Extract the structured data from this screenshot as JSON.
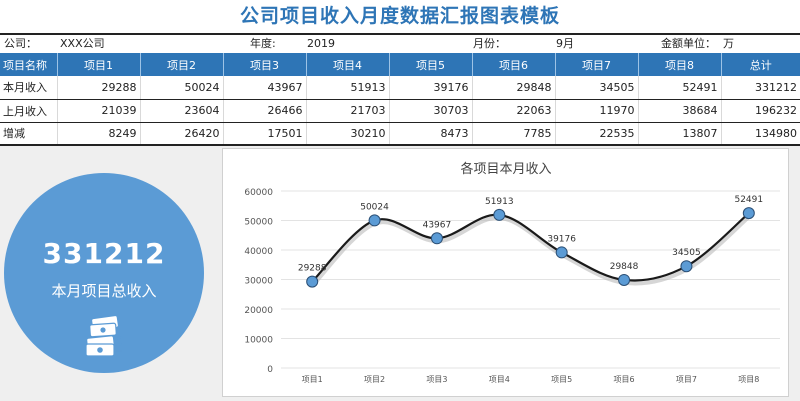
{
  "title": "公司项目收入月度数据汇报图表模板",
  "info": {
    "company_label": "公司：",
    "company_value": "XXX公司",
    "year_label": "年度:",
    "year_value": "2019",
    "month_label": "月份：",
    "month_value": "9月",
    "unit_label": "金额单位：",
    "unit_value": "万"
  },
  "table": {
    "headers": [
      "项目名称",
      "项目1",
      "项目2",
      "项目3",
      "项目4",
      "项目5",
      "项目6",
      "项目7",
      "项目8",
      "总计"
    ],
    "rows": [
      {
        "label": "本月收入",
        "values": [
          "29288",
          "50024",
          "43967",
          "51913",
          "39176",
          "29848",
          "34505",
          "52491",
          "331212"
        ]
      },
      {
        "label": "上月收入",
        "values": [
          "21039",
          "23604",
          "26466",
          "21703",
          "30703",
          "22063",
          "11970",
          "38684",
          "196232"
        ]
      },
      {
        "label": "增减",
        "values": [
          "8249",
          "26420",
          "17501",
          "30210",
          "8473",
          "7785",
          "22535",
          "13807",
          "134980"
        ]
      }
    ]
  },
  "summary": {
    "total": "331212",
    "label": "本月项目总收入",
    "icon": "money-stack-icon"
  },
  "colors": {
    "accent": "#2E75B6",
    "circle": "#5B9BD5",
    "marker": "#5B9BD5",
    "line": "#1a1a1a"
  },
  "chart_data": {
    "type": "line",
    "title": "各项目本月收入",
    "categories": [
      "项目1",
      "项目2",
      "项目3",
      "项目4",
      "项目5",
      "项目6",
      "项目7",
      "项目8"
    ],
    "series": [
      {
        "values": [
          29288,
          50024,
          43967,
          51913,
          39176,
          29848,
          34505,
          52491
        ]
      }
    ],
    "ylim": [
      0,
      60000
    ],
    "yticks": [
      "0",
      "10000",
      "20000",
      "30000",
      "40000",
      "50000",
      "60000"
    ],
    "data_labels": [
      "29288",
      "50024",
      "43967",
      "51913",
      "39176",
      "29848",
      "34505",
      "52491"
    ],
    "smooth": true,
    "grid": true,
    "legend": "none"
  }
}
